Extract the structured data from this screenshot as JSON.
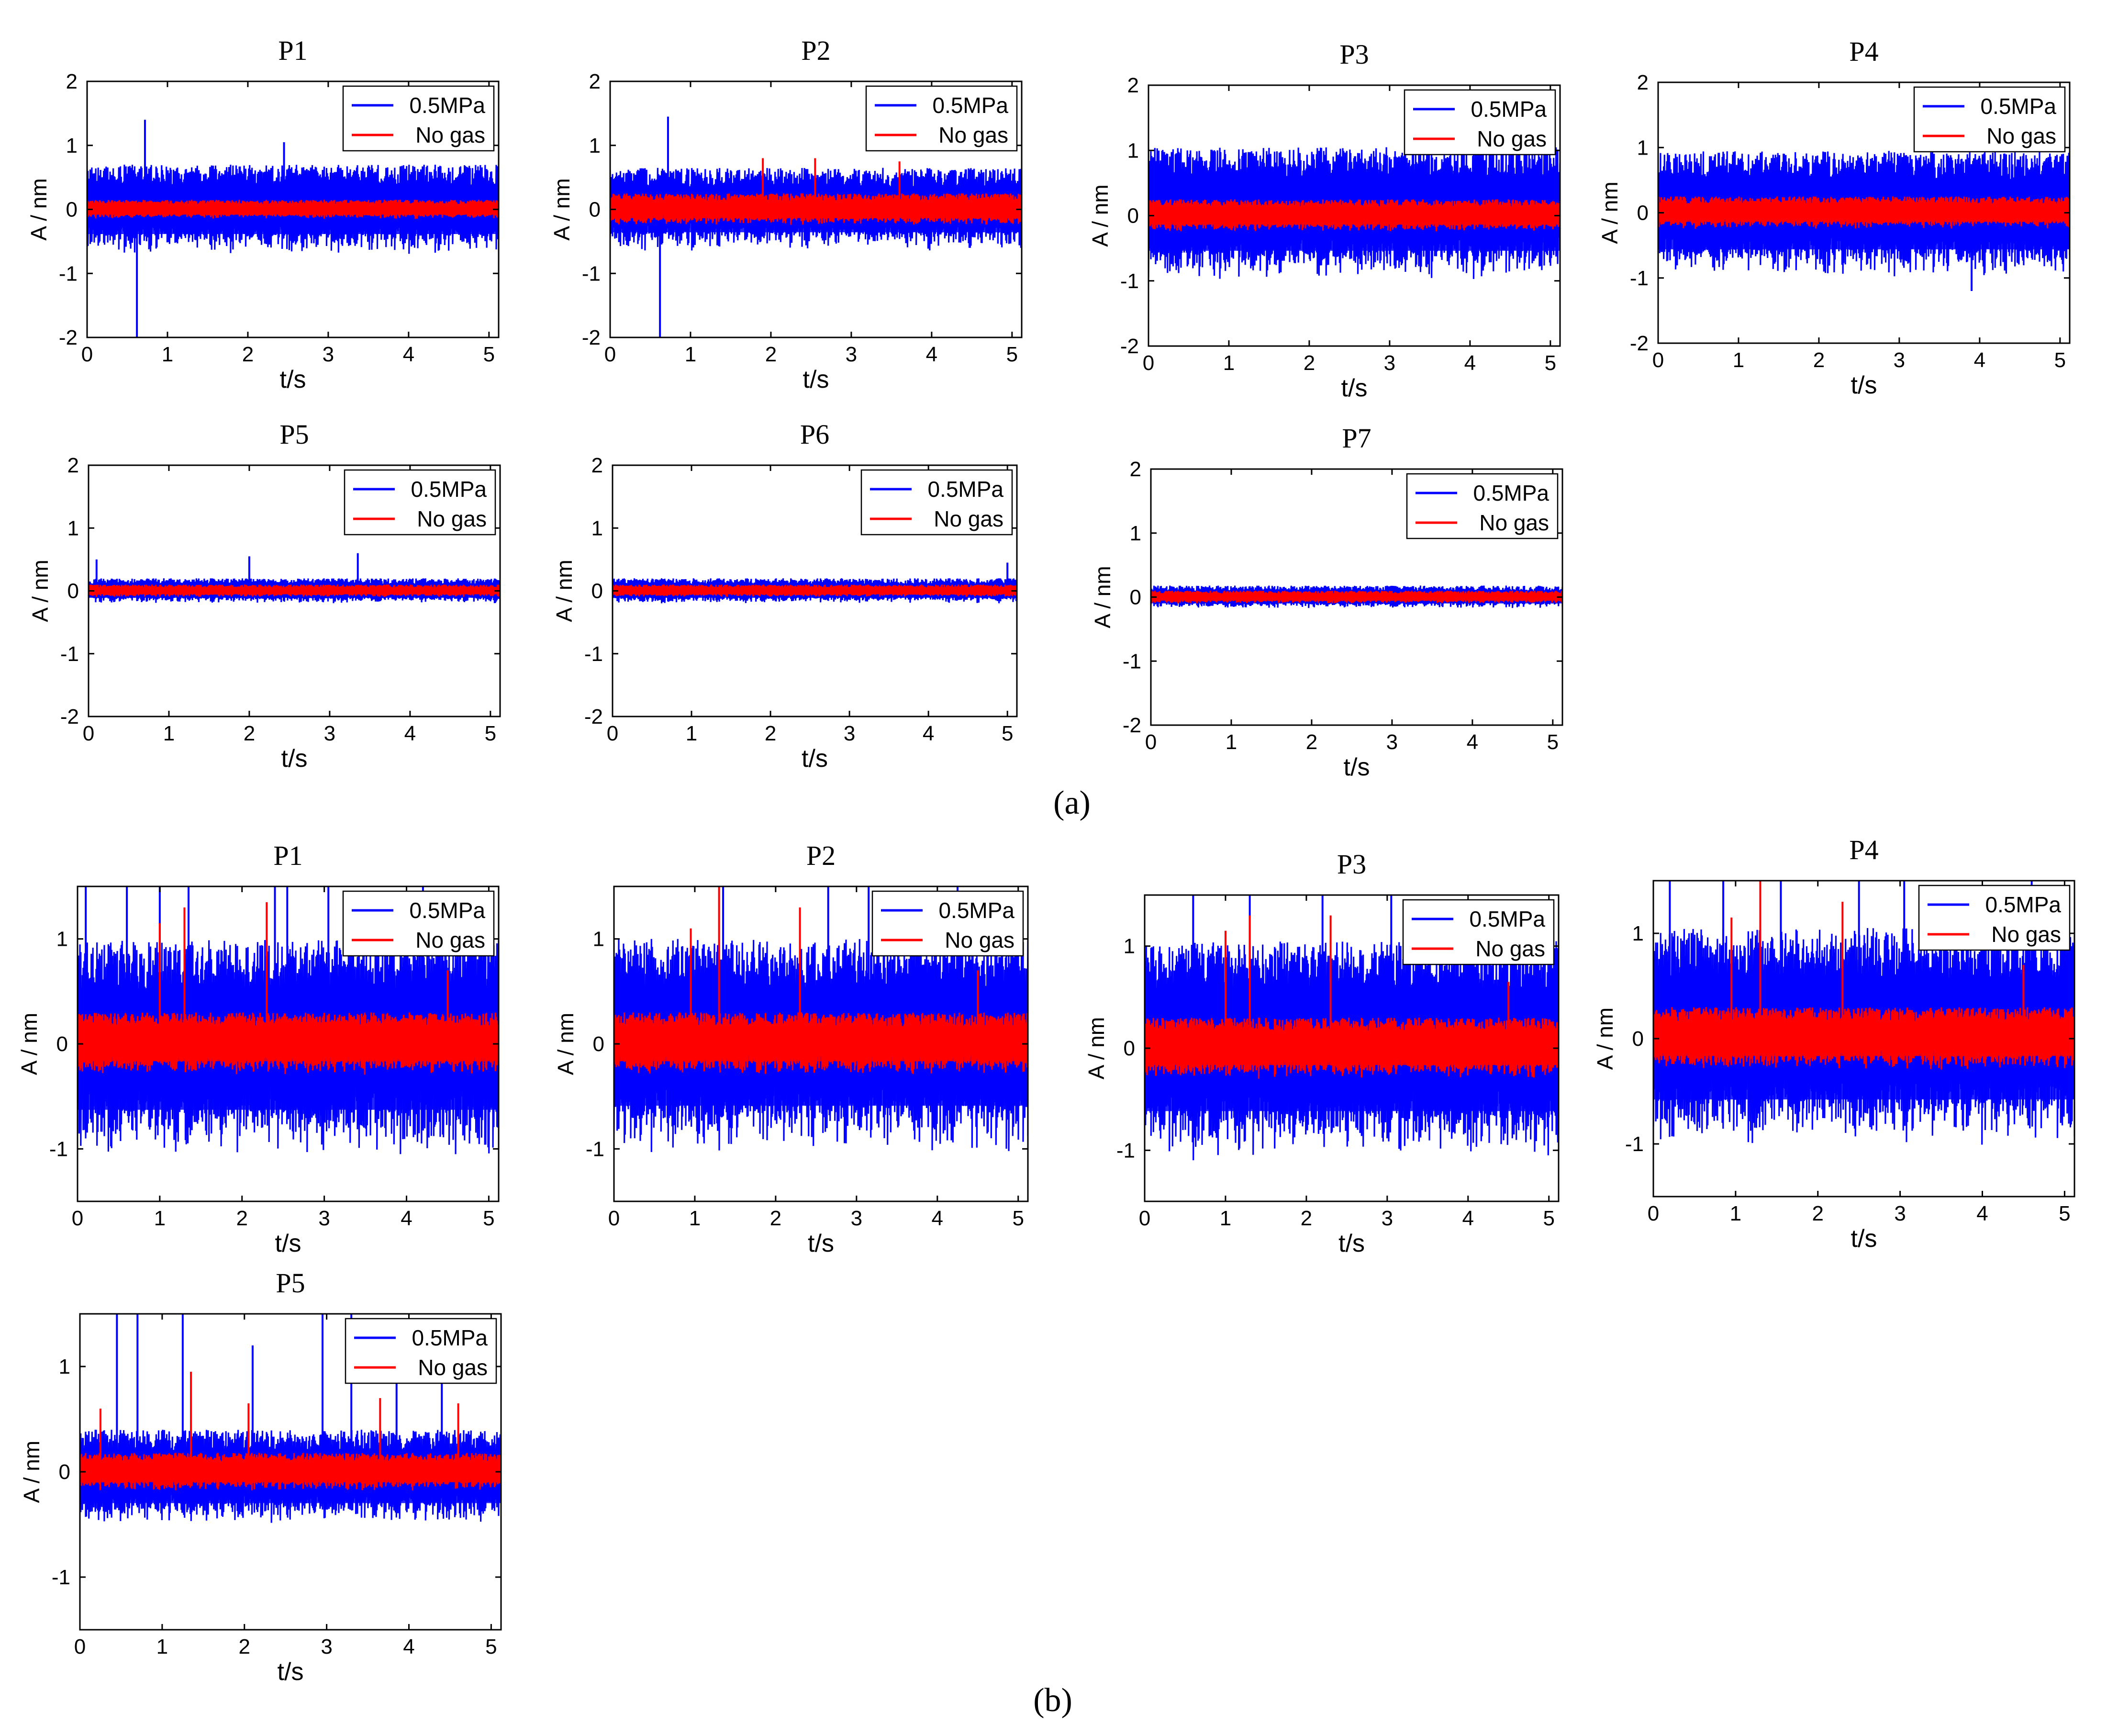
{
  "figure": {
    "part_a_label": "(a)",
    "part_b_label": "(b)",
    "colors": {
      "gas": "#0000ff",
      "nogas": "#ff0000",
      "axis": "#000000"
    }
  },
  "chart_data": [
    {
      "id": "a-P1",
      "part": "a",
      "type": "line",
      "title": "P1",
      "xlabel": "t/s",
      "ylabel": "A / nm",
      "xlim": [
        0,
        5.12
      ],
      "ylim": [
        -2,
        2
      ],
      "xticks": [
        0,
        1,
        2,
        3,
        4,
        5
      ],
      "yticks": [
        -2,
        -1,
        0,
        1,
        2
      ],
      "legend": [
        "0.5MPa",
        "No gas"
      ],
      "legend_position": "top-right",
      "series": [
        {
          "name": "0.5MPa",
          "color": "#0000ff",
          "band": [
            -0.7,
            0.7
          ],
          "spikes": [
            {
              "t": 0.72,
              "a": 1.4
            },
            {
              "t": 0.62,
              "a": -2.0
            },
            {
              "t": 2.45,
              "a": 1.05
            }
          ]
        },
        {
          "name": "No gas",
          "color": "#ff0000",
          "band": [
            -0.15,
            0.15
          ],
          "spikes": []
        }
      ]
    },
    {
      "id": "a-P2",
      "part": "a",
      "type": "line",
      "title": "P2",
      "xlabel": "t/s",
      "ylabel": "A / nm",
      "xlim": [
        0,
        5.12
      ],
      "ylim": [
        -2,
        2
      ],
      "xticks": [
        0,
        1,
        2,
        3,
        4,
        5
      ],
      "yticks": [
        -2,
        -1,
        0,
        1,
        2
      ],
      "legend": [
        "0.5MPa",
        "No gas"
      ],
      "legend_position": "top-right",
      "series": [
        {
          "name": "0.5MPa",
          "color": "#0000ff",
          "band": [
            -0.65,
            0.65
          ],
          "spikes": [
            {
              "t": 0.72,
              "a": 1.45
            },
            {
              "t": 0.62,
              "a": -2.0
            }
          ]
        },
        {
          "name": "No gas",
          "color": "#ff0000",
          "band": [
            -0.25,
            0.25
          ],
          "spikes": [
            {
              "t": 1.9,
              "a": 0.8
            },
            {
              "t": 2.55,
              "a": 0.8
            },
            {
              "t": 3.6,
              "a": 0.75
            }
          ]
        }
      ]
    },
    {
      "id": "a-P3",
      "part": "a",
      "type": "line",
      "title": "P3",
      "xlabel": "t/s",
      "ylabel": "A / nm",
      "xlim": [
        0,
        5.12
      ],
      "ylim": [
        -2,
        2
      ],
      "xticks": [
        0,
        1,
        2,
        3,
        4,
        5
      ],
      "yticks": [
        -2,
        -1,
        0,
        1,
        2
      ],
      "legend": [
        "0.5MPa",
        "No gas"
      ],
      "legend_position": "top-right",
      "series": [
        {
          "name": "0.5MPa",
          "color": "#0000ff",
          "band": [
            -1.0,
            1.05
          ],
          "spikes": []
        },
        {
          "name": "No gas",
          "color": "#ff0000",
          "band": [
            -0.25,
            0.25
          ],
          "spikes": []
        }
      ]
    },
    {
      "id": "a-P4",
      "part": "a",
      "type": "line",
      "title": "P4",
      "xlabel": "t/s",
      "ylabel": "A / nm",
      "xlim": [
        0,
        5.12
      ],
      "ylim": [
        -2,
        2
      ],
      "xticks": [
        0,
        1,
        2,
        3,
        4,
        5
      ],
      "yticks": [
        -2,
        -1,
        0,
        1,
        2
      ],
      "legend": [
        "0.5MPa",
        "No gas"
      ],
      "legend_position": "top-right",
      "series": [
        {
          "name": "0.5MPa",
          "color": "#0000ff",
          "band": [
            -1.0,
            0.95
          ],
          "spikes": [
            {
              "t": 3.9,
              "a": -1.2
            }
          ]
        },
        {
          "name": "No gas",
          "color": "#ff0000",
          "band": [
            -0.25,
            0.25
          ],
          "spikes": []
        }
      ]
    },
    {
      "id": "a-P5",
      "part": "a",
      "type": "line",
      "title": "P5",
      "xlabel": "t/s",
      "ylabel": "A / nm",
      "xlim": [
        0,
        5.12
      ],
      "ylim": [
        -2,
        2
      ],
      "xticks": [
        0,
        1,
        2,
        3,
        4,
        5
      ],
      "yticks": [
        -2,
        -1,
        0,
        1,
        2
      ],
      "legend": [
        "0.5MPa",
        "No gas"
      ],
      "legend_position": "top-right",
      "series": [
        {
          "name": "0.5MPa",
          "color": "#0000ff",
          "band": [
            -0.2,
            0.2
          ],
          "spikes": [
            {
              "t": 0.1,
              "a": 0.5
            },
            {
              "t": 2.0,
              "a": 0.55
            },
            {
              "t": 3.35,
              "a": 0.6
            }
          ]
        },
        {
          "name": "No gas",
          "color": "#ff0000",
          "band": [
            -0.1,
            0.1
          ],
          "spikes": []
        }
      ]
    },
    {
      "id": "a-P6",
      "part": "a",
      "type": "line",
      "title": "P6",
      "xlabel": "t/s",
      "ylabel": "A / nm",
      "xlim": [
        0,
        5.12
      ],
      "ylim": [
        -2,
        2
      ],
      "xticks": [
        0,
        1,
        2,
        3,
        4,
        5
      ],
      "yticks": [
        -2,
        -1,
        0,
        1,
        2
      ],
      "legend": [
        "0.5MPa",
        "No gas"
      ],
      "legend_position": "top-right",
      "series": [
        {
          "name": "0.5MPa",
          "color": "#0000ff",
          "band": [
            -0.2,
            0.2
          ],
          "spikes": [
            {
              "t": 5.0,
              "a": 0.45
            }
          ]
        },
        {
          "name": "No gas",
          "color": "#ff0000",
          "band": [
            -0.1,
            0.1
          ],
          "spikes": []
        }
      ]
    },
    {
      "id": "a-P7",
      "part": "a",
      "type": "line",
      "title": "P7",
      "xlabel": "t/s",
      "ylabel": "A / nm",
      "xlim": [
        0,
        5.12
      ],
      "ylim": [
        -2,
        2
      ],
      "xticks": [
        0,
        1,
        2,
        3,
        4,
        5
      ],
      "yticks": [
        -2,
        -1,
        0,
        1,
        2
      ],
      "legend": [
        "0.5MPa",
        "No gas"
      ],
      "legend_position": "top-right",
      "series": [
        {
          "name": "0.5MPa",
          "color": "#0000ff",
          "band": [
            -0.18,
            0.18
          ],
          "spikes": []
        },
        {
          "name": "No gas",
          "color": "#ff0000",
          "band": [
            -0.1,
            0.1
          ],
          "spikes": []
        }
      ]
    },
    {
      "id": "b-P1",
      "part": "b",
      "type": "line",
      "title": "P1",
      "xlabel": "t/s",
      "ylabel": "A / nm",
      "xlim": [
        0,
        5.12
      ],
      "ylim": [
        -1.5,
        1.5
      ],
      "xticks": [
        0,
        1,
        2,
        3,
        4,
        5
      ],
      "yticks": [
        -1,
        0,
        1
      ],
      "legend": [
        "0.5MPa",
        "No gas"
      ],
      "legend_position": "top-right",
      "series": [
        {
          "name": "0.5MPa",
          "color": "#0000ff",
          "band": [
            -1.1,
            1.0
          ],
          "spikes": [
            {
              "t": 0.1,
              "a": 1.5
            },
            {
              "t": 0.6,
              "a": 1.5
            },
            {
              "t": 1.0,
              "a": 1.5
            },
            {
              "t": 1.35,
              "a": 1.5
            },
            {
              "t": 2.4,
              "a": 1.5
            },
            {
              "t": 2.55,
              "a": 1.5
            },
            {
              "t": 3.05,
              "a": 1.5
            },
            {
              "t": 4.2,
              "a": 1.5
            }
          ]
        },
        {
          "name": "No gas",
          "color": "#ff0000",
          "band": [
            -0.3,
            0.3
          ],
          "spikes": [
            {
              "t": 1.0,
              "a": 1.15
            },
            {
              "t": 1.3,
              "a": 1.3
            },
            {
              "t": 2.3,
              "a": 1.35
            },
            {
              "t": 4.5,
              "a": 0.7
            }
          ]
        }
      ]
    },
    {
      "id": "b-P2",
      "part": "b",
      "type": "line",
      "title": "P2",
      "xlabel": "t/s",
      "ylabel": "A / nm",
      "xlim": [
        0,
        5.12
      ],
      "ylim": [
        -1.5,
        1.5
      ],
      "xticks": [
        0,
        1,
        2,
        3,
        4,
        5
      ],
      "yticks": [
        -1,
        0,
        1
      ],
      "legend": [
        "0.5MPa",
        "No gas"
      ],
      "legend_position": "top-right",
      "series": [
        {
          "name": "0.5MPa",
          "color": "#0000ff",
          "band": [
            -1.05,
            1.0
          ],
          "spikes": [
            {
              "t": 1.35,
              "a": 1.5
            },
            {
              "t": 2.65,
              "a": 1.5
            },
            {
              "t": 3.15,
              "a": 1.5
            },
            {
              "t": 4.25,
              "a": 1.5
            }
          ]
        },
        {
          "name": "No gas",
          "color": "#ff0000",
          "band": [
            -0.3,
            0.3
          ],
          "spikes": [
            {
              "t": 0.95,
              "a": 1.1
            },
            {
              "t": 1.3,
              "a": 1.5
            },
            {
              "t": 2.3,
              "a": 1.3
            },
            {
              "t": 4.5,
              "a": 0.7
            }
          ]
        }
      ]
    },
    {
      "id": "b-P3",
      "part": "b",
      "type": "line",
      "title": "P3",
      "xlabel": "t/s",
      "ylabel": "A / nm",
      "xlim": [
        0,
        5.12
      ],
      "ylim": [
        -1.5,
        1.5
      ],
      "xticks": [
        0,
        1,
        2,
        3,
        4,
        5
      ],
      "yticks": [
        -1,
        0,
        1
      ],
      "legend": [
        "0.5MPa",
        "No gas"
      ],
      "legend_position": "top-right",
      "series": [
        {
          "name": "0.5MPa",
          "color": "#0000ff",
          "band": [
            -1.1,
            1.05
          ],
          "spikes": [
            {
              "t": 0.6,
              "a": 1.5
            },
            {
              "t": 1.3,
              "a": 1.5
            },
            {
              "t": 2.2,
              "a": 1.5
            },
            {
              "t": 3.05,
              "a": 1.5
            }
          ]
        },
        {
          "name": "No gas",
          "color": "#ff0000",
          "band": [
            -0.3,
            0.3
          ],
          "spikes": [
            {
              "t": 1.0,
              "a": 1.15
            },
            {
              "t": 1.3,
              "a": 1.3
            },
            {
              "t": 2.3,
              "a": 1.3
            },
            {
              "t": 4.5,
              "a": 0.65
            }
          ]
        }
      ]
    },
    {
      "id": "b-P4",
      "part": "b",
      "type": "line",
      "title": "P4",
      "xlabel": "t/s",
      "ylabel": "A / nm",
      "xlim": [
        0,
        5.12
      ],
      "ylim": [
        -1.5,
        1.5
      ],
      "xticks": [
        0,
        1,
        2,
        3,
        4,
        5
      ],
      "yticks": [
        -1,
        0,
        1
      ],
      "legend": [
        "0.5MPa",
        "No gas"
      ],
      "legend_position": "top-right",
      "series": [
        {
          "name": "0.5MPa",
          "color": "#0000ff",
          "band": [
            -1.05,
            1.05
          ],
          "spikes": [
            {
              "t": 0.2,
              "a": 1.5
            },
            {
              "t": 0.85,
              "a": 1.5
            },
            {
              "t": 1.55,
              "a": 1.5
            },
            {
              "t": 2.5,
              "a": 1.5
            },
            {
              "t": 3.05,
              "a": 1.5
            },
            {
              "t": 4.6,
              "a": 1.5
            }
          ]
        },
        {
          "name": "No gas",
          "color": "#ff0000",
          "band": [
            -0.3,
            0.3
          ],
          "spikes": [
            {
              "t": 0.95,
              "a": 1.15
            },
            {
              "t": 1.3,
              "a": 1.5
            },
            {
              "t": 2.3,
              "a": 1.3
            },
            {
              "t": 4.5,
              "a": 0.7
            }
          ]
        }
      ]
    },
    {
      "id": "b-P5",
      "part": "b",
      "type": "line",
      "title": "P5",
      "xlabel": "t/s",
      "ylabel": "A / nm",
      "xlim": [
        0,
        5.12
      ],
      "ylim": [
        -1.5,
        1.5
      ],
      "xticks": [
        0,
        1,
        2,
        3,
        4,
        5
      ],
      "yticks": [
        -1,
        0,
        1
      ],
      "legend": [
        "0.5MPa",
        "No gas"
      ],
      "legend_position": "top-right",
      "series": [
        {
          "name": "0.5MPa",
          "color": "#0000ff",
          "band": [
            -0.5,
            0.4
          ],
          "spikes": [
            {
              "t": 0.45,
              "a": 1.5
            },
            {
              "t": 0.7,
              "a": 1.5
            },
            {
              "t": 1.25,
              "a": 1.5
            },
            {
              "t": 2.1,
              "a": 1.2
            },
            {
              "t": 2.95,
              "a": 1.5
            },
            {
              "t": 3.3,
              "a": 1.5
            },
            {
              "t": 3.85,
              "a": 1.1
            },
            {
              "t": 4.4,
              "a": 1.0
            }
          ]
        },
        {
          "name": "No gas",
          "color": "#ff0000",
          "band": [
            -0.18,
            0.18
          ],
          "spikes": [
            {
              "t": 0.25,
              "a": 0.6
            },
            {
              "t": 1.35,
              "a": 0.95
            },
            {
              "t": 2.05,
              "a": 0.65
            },
            {
              "t": 3.65,
              "a": 0.7
            },
            {
              "t": 4.6,
              "a": 0.65
            }
          ]
        }
      ]
    }
  ]
}
